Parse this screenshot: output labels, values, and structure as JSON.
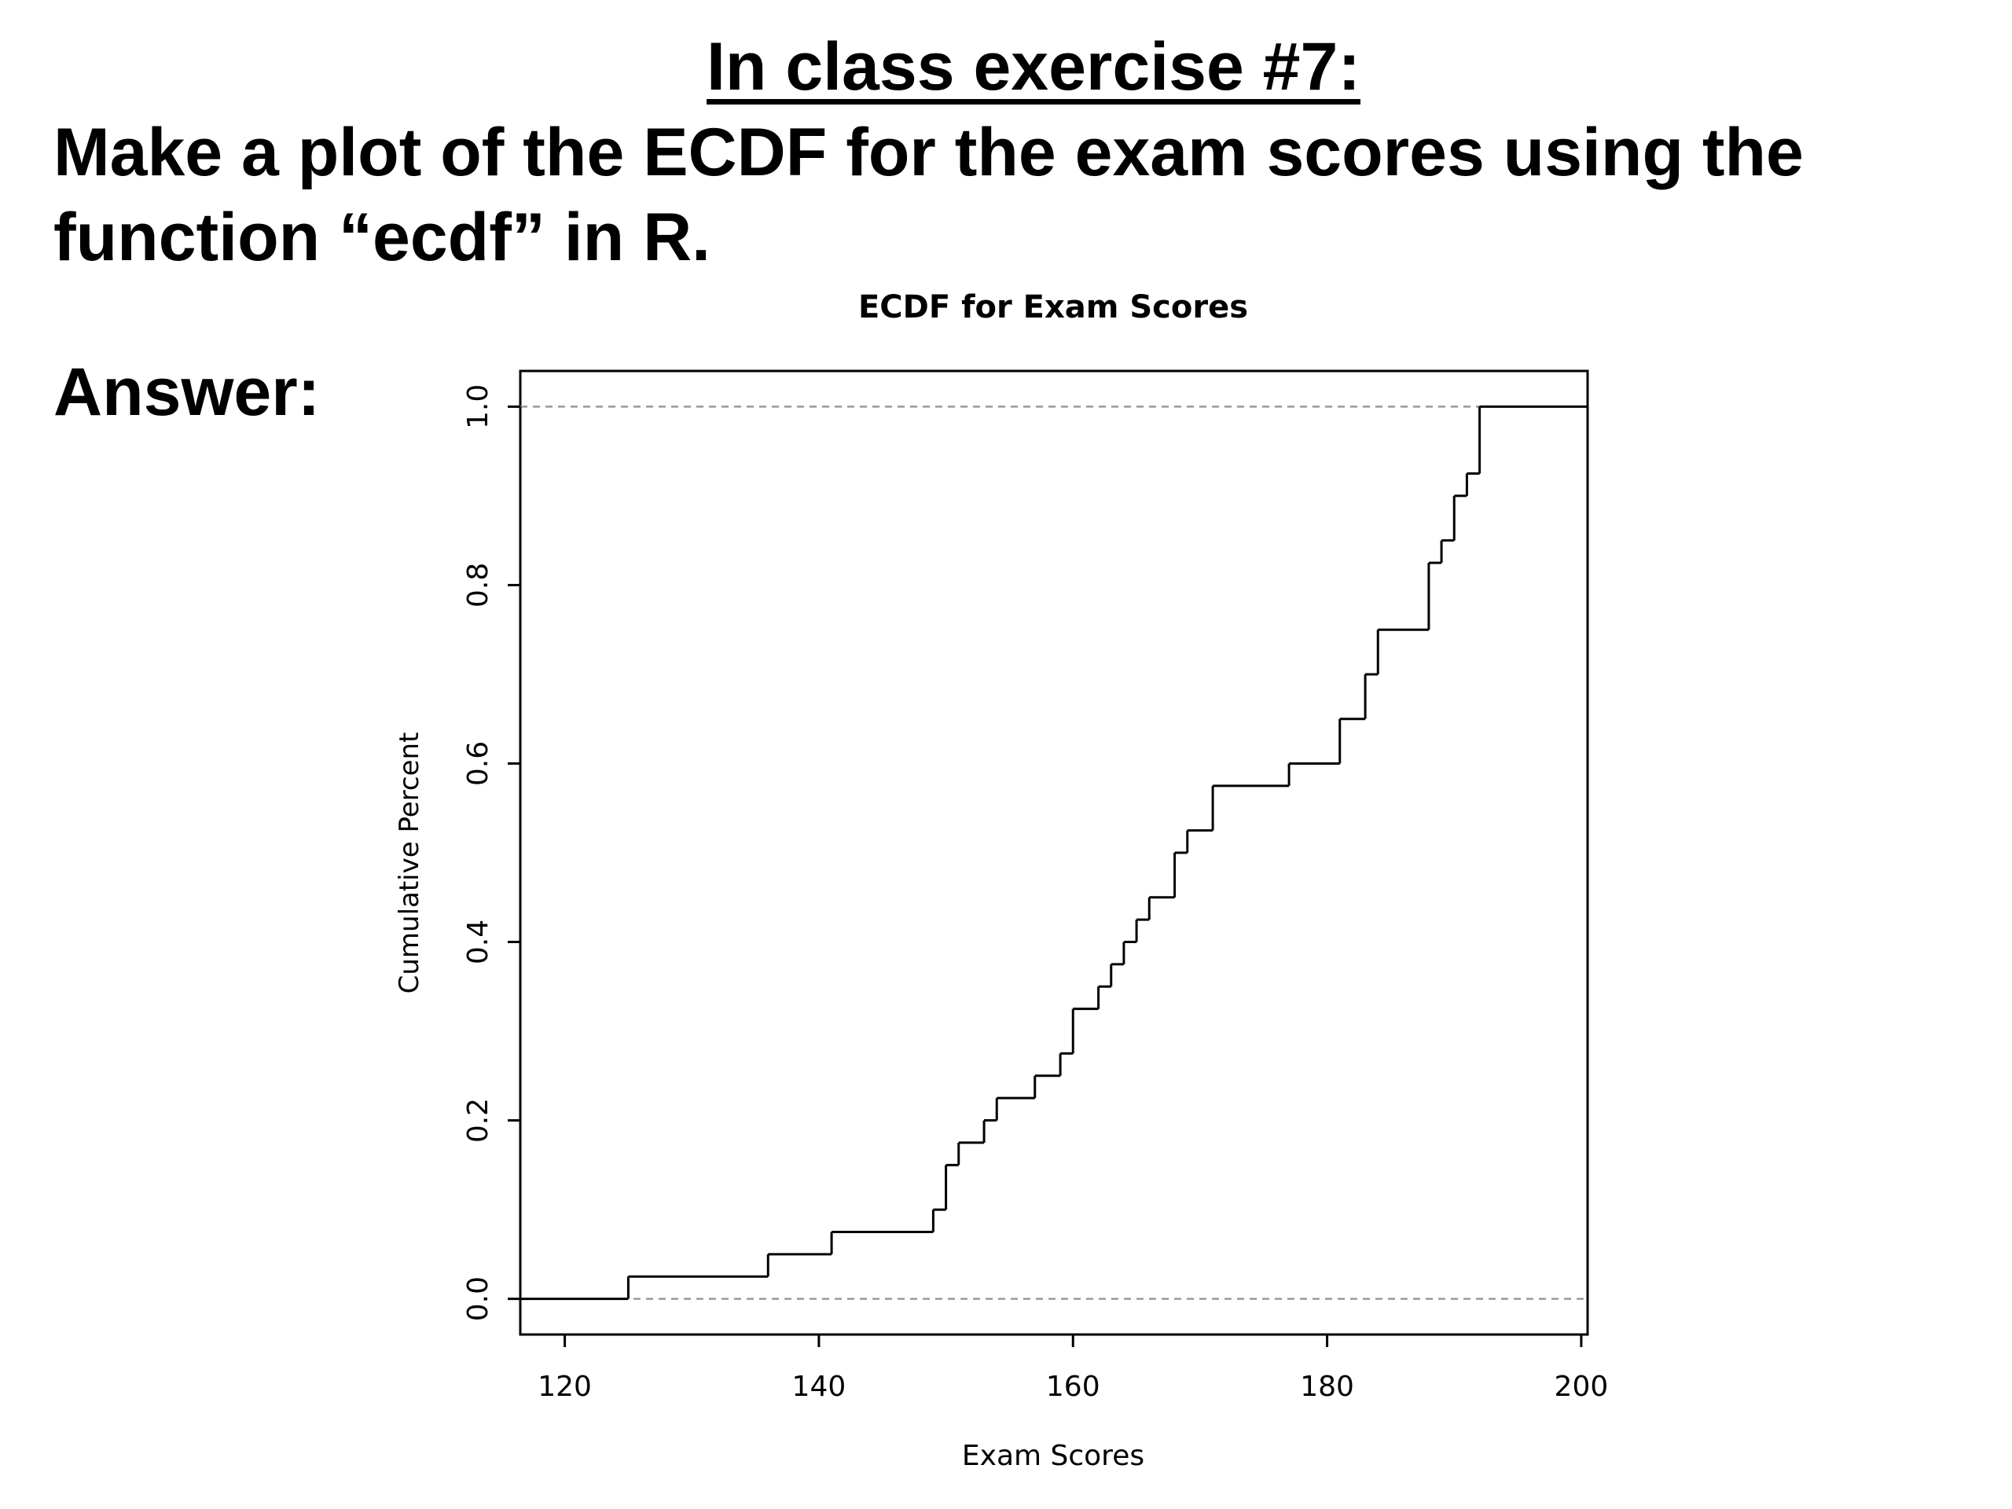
{
  "slide": {
    "title": "In class exercise #7:",
    "body": "Make a plot of the ECDF for the exam scores using the function “ecdf” in R.",
    "answer_label": "Answer:"
  },
  "chart_data": {
    "type": "line",
    "step": true,
    "title": "ECDF for Exam Scores",
    "xlabel": "Exam Scores",
    "ylabel": "Cumulative Percent",
    "xlim": [
      116.5,
      200.5
    ],
    "ylim": [
      -0.04,
      1.04
    ],
    "xticks": [
      120,
      140,
      160,
      180,
      200
    ],
    "yticks": [
      0.0,
      0.2,
      0.4,
      0.6,
      0.8,
      1.0
    ],
    "xtick_labels": [
      "120",
      "140",
      "160",
      "180",
      "200"
    ],
    "ytick_labels": [
      "0.0",
      "0.2",
      "0.4",
      "0.6",
      "0.8",
      "1.0"
    ],
    "reference_lines": [
      0,
      1
    ],
    "grid": false,
    "line_color": "#000000",
    "reference_color": "#999999",
    "x": [
      125,
      136,
      141,
      149,
      150,
      151,
      153,
      154,
      157,
      159,
      160,
      162,
      163,
      164,
      165,
      166,
      168,
      169,
      171,
      177,
      181,
      183,
      184,
      188,
      189,
      190,
      191,
      192
    ],
    "y": [
      0.025,
      0.05,
      0.075,
      0.1,
      0.15,
      0.175,
      0.2,
      0.225,
      0.25,
      0.275,
      0.325,
      0.35,
      0.375,
      0.4,
      0.425,
      0.45,
      0.5,
      0.525,
      0.575,
      0.6,
      0.65,
      0.7,
      0.75,
      0.825,
      0.85,
      0.9,
      0.925,
      1.0
    ]
  }
}
